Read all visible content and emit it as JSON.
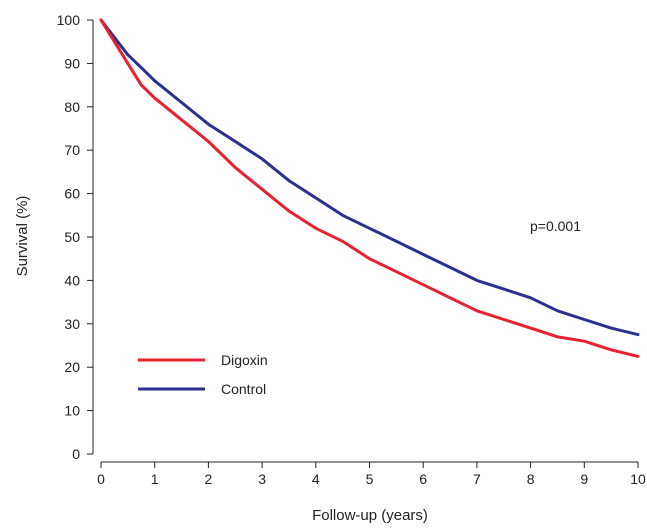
{
  "chart_data": {
    "type": "line",
    "title": "",
    "xlabel": "Follow-up (years)",
    "ylabel": "Survival (%)",
    "xlim": [
      0,
      10
    ],
    "ylim": [
      0,
      100
    ],
    "x_ticks": [
      "0",
      "1",
      "2",
      "3",
      "4",
      "5",
      "6",
      "7",
      "8",
      "9",
      "10"
    ],
    "y_ticks": [
      "0",
      "10",
      "20",
      "30",
      "40",
      "50",
      "60",
      "70",
      "80",
      "90",
      "100"
    ],
    "grid": false,
    "legend_position": "bottom-left",
    "annotation": "p=0.001",
    "series": [
      {
        "name": "Digoxin",
        "color": "#e8202f",
        "x": [
          0,
          0.25,
          0.5,
          0.75,
          1,
          1.5,
          2,
          2.5,
          3,
          3.5,
          4,
          4.5,
          5,
          5.5,
          6,
          6.5,
          7,
          7.5,
          8,
          8.5,
          9,
          9.5,
          10
        ],
        "y": [
          100,
          95,
          90,
          85,
          82,
          77,
          72,
          66,
          61,
          56,
          52,
          49,
          45,
          42,
          39,
          36,
          33,
          31,
          29,
          27,
          26,
          24,
          22.5
        ]
      },
      {
        "name": "Control",
        "color": "#2b2f8f",
        "x": [
          0,
          0.25,
          0.5,
          0.75,
          1,
          1.5,
          2,
          2.5,
          3,
          3.5,
          4,
          4.5,
          5,
          5.5,
          6,
          6.5,
          7,
          7.5,
          8,
          8.5,
          9,
          9.5,
          10
        ],
        "y": [
          100,
          96,
          92,
          89,
          86,
          81,
          76,
          72,
          68,
          63,
          59,
          55,
          52,
          49,
          46,
          43,
          40,
          38,
          36,
          33,
          31,
          29,
          27.5
        ]
      }
    ]
  }
}
